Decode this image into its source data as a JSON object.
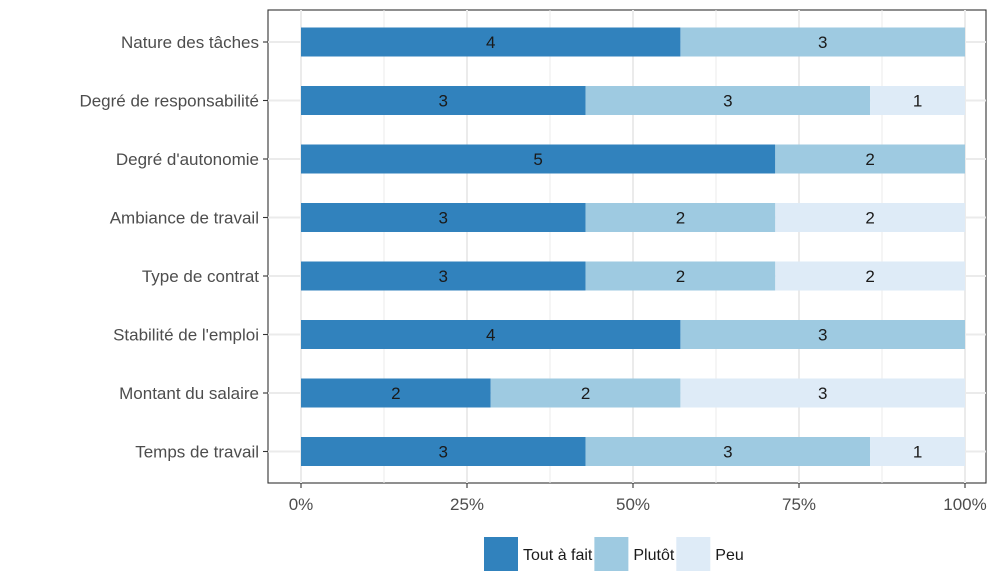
{
  "chart_data": {
    "type": "bar",
    "orientation": "horizontal",
    "stacked": "percent",
    "categories": [
      "Nature des tâches",
      "Degré de responsabilité",
      "Degré d'autonomie",
      "Ambiance de travail",
      "Type de contrat",
      "Stabilité de l'emploi",
      "Montant du salaire",
      "Temps de travail"
    ],
    "series": [
      {
        "name": "Tout à fait",
        "color": "#3182bd",
        "values": [
          4,
          3,
          5,
          3,
          3,
          4,
          2,
          3
        ]
      },
      {
        "name": "Plutôt",
        "color": "#9ecae1",
        "values": [
          3,
          3,
          2,
          2,
          2,
          3,
          2,
          3
        ]
      },
      {
        "name": "Peu",
        "color": "#deebf7",
        "values": [
          0,
          1,
          0,
          2,
          2,
          0,
          3,
          1
        ]
      }
    ],
    "x_ticks": [
      "0%",
      "25%",
      "50%",
      "75%",
      "100%"
    ],
    "xlim": [
      0,
      1
    ],
    "legend_position": "bottom",
    "grid": true,
    "title": "",
    "xlabel": "",
    "ylabel": ""
  }
}
